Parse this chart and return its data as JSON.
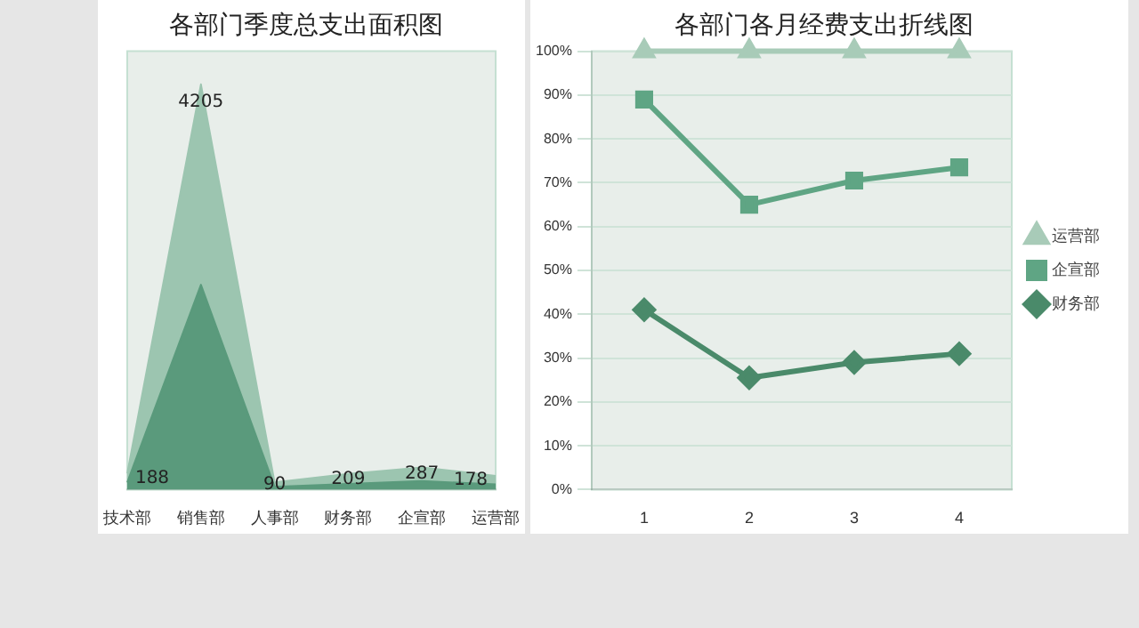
{
  "chart_data": [
    {
      "type": "area",
      "title": "各部门季度总支出面积图",
      "categories": [
        "技术部",
        "销售部",
        "人事部",
        "财务部",
        "企宣部",
        "运营部"
      ],
      "stacked": true,
      "ylim": [
        0,
        9200
      ],
      "tick_labels": "x",
      "grid": false,
      "legend": false,
      "series": [
        {
          "color": "#5a9a7c",
          "values": [
            150,
            4300,
            60,
            120,
            180,
            110
          ]
        },
        {
          "color": "#9cc5b0",
          "values": [
            188,
            4205,
            90,
            209,
            287,
            178
          ],
          "value_labels": [
            "188",
            "4205",
            "90",
            "209",
            "287",
            "178"
          ]
        }
      ]
    },
    {
      "type": "line",
      "title": "各部门各月经费支出折线图",
      "categories": [
        "1",
        "2",
        "3",
        "4"
      ],
      "ylim": [
        0,
        100
      ],
      "yticks": [
        {
          "value": 0,
          "label": "0%"
        },
        {
          "value": 10,
          "label": "10%"
        },
        {
          "value": 20,
          "label": "20%"
        },
        {
          "value": 30,
          "label": "30%"
        },
        {
          "value": 40,
          "label": "40%"
        },
        {
          "value": 50,
          "label": "50%"
        },
        {
          "value": 60,
          "label": "60%"
        },
        {
          "value": 70,
          "label": "70%"
        },
        {
          "value": 80,
          "label": "80%"
        },
        {
          "value": 90,
          "label": "90%"
        },
        {
          "value": 100,
          "label": "100%"
        }
      ],
      "grid": "y",
      "legend": "right",
      "line_style": "solid",
      "series": [
        {
          "name": "运营部",
          "color": "#a8cbb8",
          "marker": "triangle",
          "values": [
            100,
            100,
            100,
            100
          ]
        },
        {
          "name": "企宣部",
          "color": "#5fa584",
          "marker": "square",
          "values": [
            89,
            65,
            70.5,
            73.5
          ]
        },
        {
          "name": "财务部",
          "color": "#4a8a6a",
          "marker": "diamond",
          "values": [
            41,
            25.5,
            29,
            31
          ]
        }
      ]
    }
  ]
}
